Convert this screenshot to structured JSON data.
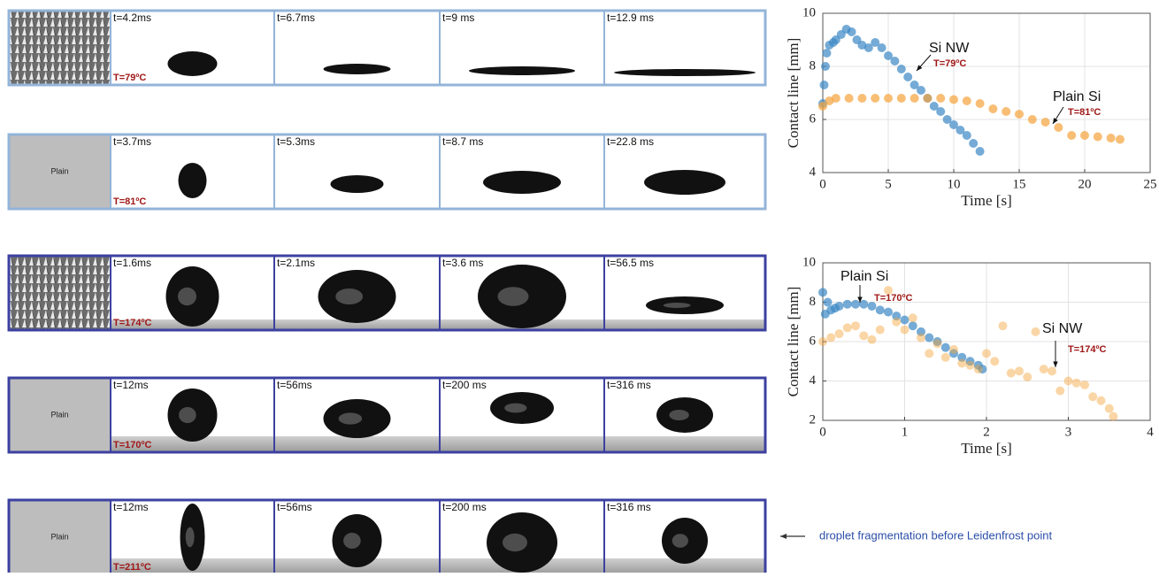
{
  "panels": [
    {
      "thumb": null,
      "temp": "T=79ºC",
      "frames": [
        "t=4.2ms",
        "t=6.7ms",
        "t=9 ms",
        "t=12.9 ms"
      ]
    },
    {
      "thumb": "Plain",
      "temp": "T=81ºC",
      "frames": [
        "t=3.7ms",
        "t=5.3ms",
        "t=8.7 ms",
        "t=22.8 ms"
      ]
    },
    {
      "thumb": null,
      "temp": "T=174ºC",
      "frames": [
        "t=1.6ms",
        "t=2.1ms",
        "t=3.6 ms",
        "t=56.5 ms"
      ]
    },
    {
      "thumb": "Plain",
      "temp": "T=170ºC",
      "frames": [
        "t=12ms",
        "t=56ms",
        "t=200 ms",
        "t=316 ms"
      ]
    },
    {
      "thumb": "Plain",
      "temp": "T=211ºC",
      "frames": [
        "t=12ms",
        "t=56ms",
        "t=200 ms",
        "t=316 ms"
      ]
    }
  ],
  "note": "droplet fragmentation before Leidenfrost point",
  "chart_data": [
    {
      "type": "scatter",
      "xlabel": "Time [s]",
      "ylabel": "Contact line [mm]",
      "xlim": [
        0,
        25
      ],
      "ylim": [
        4,
        10
      ],
      "xticks": [
        0,
        5,
        10,
        15,
        20,
        25
      ],
      "yticks": [
        4,
        6,
        8,
        10
      ],
      "grid": true,
      "annotations": [
        "T=79ºC",
        "T=81ºC"
      ],
      "series": [
        {
          "name": "Si NW",
          "color": "#3a87c4",
          "x": [
            0,
            0.1,
            0.2,
            0.3,
            0.5,
            0.8,
            1.0,
            1.4,
            1.8,
            2.2,
            2.6,
            3.0,
            3.5,
            4.0,
            4.5,
            5.0,
            5.5,
            6.0,
            6.5,
            7.0,
            7.5,
            8.0,
            8.5,
            9.0,
            9.5,
            10.0,
            10.5,
            11.0,
            11.5,
            12.0
          ],
          "values": [
            6.6,
            7.3,
            8.0,
            8.5,
            8.8,
            8.9,
            9.0,
            9.2,
            9.4,
            9.3,
            9.0,
            8.8,
            8.7,
            8.9,
            8.7,
            8.4,
            8.2,
            7.9,
            7.6,
            7.3,
            7.1,
            6.8,
            6.5,
            6.3,
            6.0,
            5.8,
            5.6,
            5.4,
            5.1,
            4.8
          ]
        },
        {
          "name": "Plain Si",
          "color": "#f5a33a",
          "x": [
            0,
            0.5,
            1,
            2,
            3,
            4,
            5,
            6,
            7,
            8,
            9,
            10,
            11,
            12,
            13,
            14,
            15,
            16,
            17,
            18,
            19,
            20,
            21,
            22,
            22.7
          ],
          "values": [
            6.5,
            6.7,
            6.8,
            6.8,
            6.8,
            6.8,
            6.8,
            6.8,
            6.8,
            6.8,
            6.8,
            6.75,
            6.7,
            6.6,
            6.4,
            6.3,
            6.2,
            6.0,
            5.9,
            5.7,
            5.4,
            5.4,
            5.35,
            5.3,
            5.25
          ]
        }
      ]
    },
    {
      "type": "scatter",
      "xlabel": "Time [s]",
      "ylabel": "Contact line [mm]",
      "xlim": [
        0,
        4
      ],
      "ylim": [
        2,
        10
      ],
      "xticks": [
        0,
        1,
        2,
        3,
        4
      ],
      "yticks": [
        2,
        4,
        6,
        8,
        10
      ],
      "grid": true,
      "annotations": [
        "T=170ºC",
        "T=174ºC"
      ],
      "series": [
        {
          "name": "Plain Si",
          "color": "#3a87c4",
          "x": [
            0,
            0.03,
            0.06,
            0.1,
            0.15,
            0.2,
            0.3,
            0.4,
            0.5,
            0.6,
            0.7,
            0.8,
            0.9,
            1.0,
            1.1,
            1.2,
            1.3,
            1.4,
            1.5,
            1.6,
            1.7,
            1.8,
            1.9,
            1.95
          ],
          "values": [
            8.5,
            7.4,
            8.0,
            7.6,
            7.7,
            7.8,
            7.9,
            7.9,
            7.9,
            7.8,
            7.6,
            7.5,
            7.3,
            7.1,
            6.8,
            6.5,
            6.2,
            6.0,
            5.7,
            5.4,
            5.2,
            5.0,
            4.8,
            4.6
          ]
        },
        {
          "name": "Si NW",
          "color": "#f5a33a",
          "x": [
            0,
            0.1,
            0.2,
            0.3,
            0.4,
            0.5,
            0.6,
            0.7,
            0.8,
            0.9,
            1.0,
            1.1,
            1.2,
            1.3,
            1.4,
            1.5,
            1.6,
            1.7,
            1.8,
            1.9,
            2.0,
            2.1,
            2.2,
            2.3,
            2.4,
            2.5,
            2.6,
            2.7,
            2.8,
            2.9,
            3.0,
            3.1,
            3.2,
            3.3,
            3.4,
            3.5,
            3.55
          ],
          "values": [
            6.0,
            6.2,
            6.4,
            6.7,
            6.8,
            6.3,
            6.1,
            6.6,
            8.6,
            7.0,
            6.6,
            7.2,
            6.2,
            5.4,
            5.9,
            5.2,
            5.6,
            4.9,
            4.8,
            4.6,
            5.4,
            5.0,
            6.8,
            4.4,
            4.5,
            4.2,
            6.5,
            4.6,
            4.5,
            3.5,
            4.0,
            3.9,
            3.8,
            3.2,
            3.0,
            2.6,
            2.2
          ]
        }
      ]
    }
  ]
}
